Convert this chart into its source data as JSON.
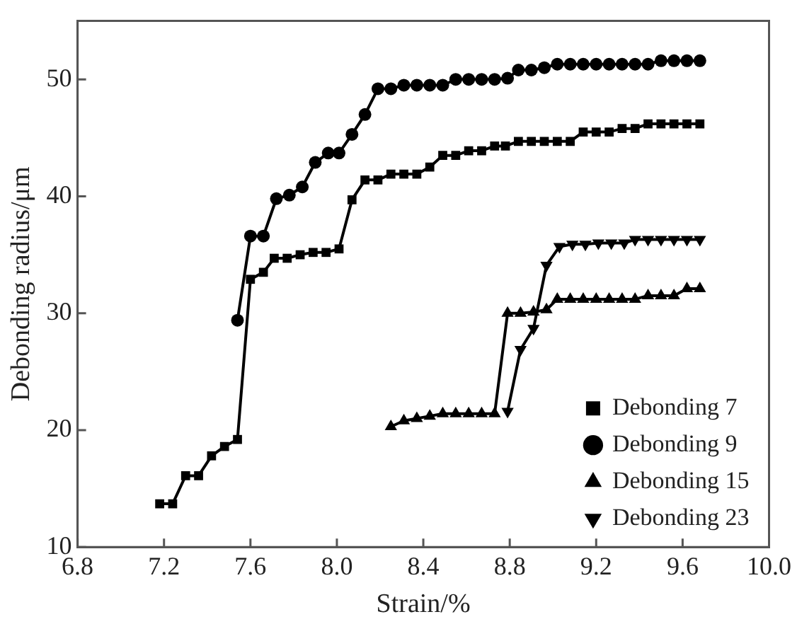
{
  "chart_data": {
    "type": "line",
    "xlabel": "Strain/%",
    "ylabel": "Debonding radius/μm",
    "xlim": [
      6.8,
      10.0
    ],
    "ylim": [
      10,
      55
    ],
    "xticks": [
      6.8,
      7.2,
      7.6,
      {
        "value": 8,
        "label": "8.0"
      },
      8.4,
      8.8,
      9.2,
      9.6,
      {
        "value": 10,
        "label": "10.0"
      }
    ],
    "yticks": [
      10,
      20,
      30,
      40,
      50
    ],
    "grid": false,
    "legend": "bottom right",
    "line_style": "solid",
    "series": [
      {
        "name": "Debonding 7",
        "color": "#000000",
        "marker": "square",
        "x": [
          7.18,
          7.24,
          7.3,
          7.36,
          7.42,
          7.48,
          7.54,
          7.6,
          7.66,
          7.71,
          7.77,
          7.83,
          7.89,
          7.95,
          8.01,
          8.07,
          8.13,
          8.19,
          8.25,
          8.31,
          8.37,
          8.43,
          8.49,
          8.55,
          8.61,
          8.67,
          8.73,
          8.78,
          8.84,
          8.9,
          8.96,
          9.02,
          9.08,
          9.14,
          9.2,
          9.26,
          9.32,
          9.38,
          9.44,
          9.5,
          9.56,
          9.62,
          9.68
        ],
        "values": [
          13.7,
          13.7,
          16.1,
          16.1,
          17.8,
          18.6,
          19.2,
          32.9,
          33.5,
          34.7,
          34.7,
          35.0,
          35.2,
          35.2,
          35.5,
          39.7,
          41.4,
          41.4,
          41.9,
          41.9,
          41.9,
          42.5,
          43.5,
          43.5,
          43.9,
          43.9,
          44.3,
          44.3,
          44.7,
          44.7,
          44.7,
          44.7,
          44.7,
          45.5,
          45.5,
          45.5,
          45.8,
          45.8,
          46.2,
          46.2,
          46.2,
          46.2,
          46.2
        ]
      },
      {
        "name": "Debonding 9",
        "color": "#000000",
        "marker": "circle",
        "x": [
          7.54,
          7.6,
          7.66,
          7.72,
          7.78,
          7.84,
          7.9,
          7.96,
          8.01,
          8.07,
          8.13,
          8.19,
          8.25,
          8.31,
          8.37,
          8.43,
          8.49,
          8.55,
          8.61,
          8.67,
          8.73,
          8.79,
          8.84,
          8.9,
          8.96,
          9.02,
          9.08,
          9.14,
          9.2,
          9.26,
          9.32,
          9.38,
          9.44,
          9.5,
          9.56,
          9.62,
          9.68
        ],
        "values": [
          29.4,
          36.6,
          36.6,
          39.8,
          40.1,
          40.8,
          42.9,
          43.7,
          43.7,
          45.3,
          47.0,
          49.2,
          49.2,
          49.5,
          49.5,
          49.5,
          49.5,
          50.0,
          50.0,
          50.0,
          50.0,
          50.1,
          50.8,
          50.8,
          51.0,
          51.3,
          51.3,
          51.3,
          51.3,
          51.3,
          51.3,
          51.3,
          51.3,
          51.6,
          51.6,
          51.6,
          51.6
        ]
      },
      {
        "name": "Debonding 15",
        "color": "#000000",
        "marker": "triangle",
        "x": [
          8.25,
          8.31,
          8.37,
          8.43,
          8.49,
          8.55,
          8.61,
          8.67,
          8.73,
          8.79,
          8.85,
          8.91,
          8.97,
          9.02,
          9.08,
          9.14,
          9.2,
          9.26,
          9.32,
          9.38,
          9.44,
          9.5,
          9.56,
          9.62,
          9.68
        ],
        "values": [
          20.3,
          20.8,
          21.0,
          21.2,
          21.4,
          21.4,
          21.4,
          21.4,
          21.4,
          30.0,
          30.0,
          30.1,
          30.3,
          31.2,
          31.2,
          31.2,
          31.2,
          31.2,
          31.2,
          31.2,
          31.5,
          31.5,
          31.5,
          32.1,
          32.1
        ]
      },
      {
        "name": "Debonding 23",
        "color": "#000000",
        "marker": "triangle_down",
        "x": [
          8.79,
          8.85,
          8.91,
          8.97,
          9.03,
          9.09,
          9.15,
          9.21,
          9.27,
          9.33,
          9.38,
          9.44,
          9.5,
          9.56,
          9.62,
          9.68
        ],
        "values": [
          21.6,
          26.9,
          28.7,
          34.1,
          35.7,
          35.9,
          35.9,
          36.0,
          36.0,
          36.0,
          36.3,
          36.3,
          36.3,
          36.3,
          36.3,
          36.3
        ]
      }
    ]
  }
}
